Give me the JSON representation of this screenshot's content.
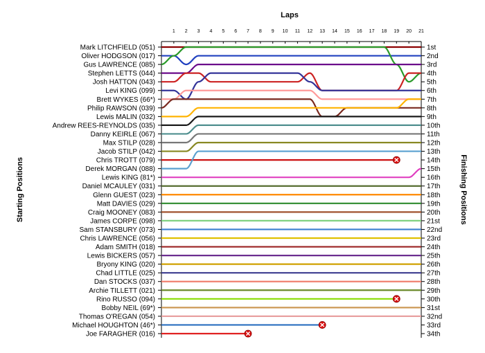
{
  "chart_data": {
    "type": "line",
    "title": "Laps",
    "ylabel_left": "Starting Positions",
    "ylabel_right": "Finishing Positions",
    "laps": [
      0,
      1,
      2,
      3,
      4,
      5,
      6,
      7,
      8,
      9,
      10,
      11,
      12,
      13,
      14,
      15,
      16,
      17,
      18,
      19,
      20,
      21
    ],
    "x_tick_labels": [
      "1",
      "2",
      "3",
      "4",
      "5",
      "6",
      "7",
      "8",
      "9",
      "10",
      "11",
      "12",
      "13",
      "14",
      "15",
      "16",
      "17",
      "18",
      "19",
      "20",
      "21"
    ],
    "starting_labels": [
      "Mark LITCHFIELD (051)",
      "Oliver HODGSON (017)",
      "Gus LAWRENCE (085)",
      "Stephen LETTS (044)",
      "Josh HATTON (043)",
      "Levi KING (099)",
      "Brett WYKES (66*)",
      "Philip RAWSON (039)",
      "Lewis MALIN (032)",
      "Andrew REES-REYNOLDS (035)",
      "Danny KEIRLE (067)",
      "Max STILP (028)",
      "Jacob STILP (042)",
      "Chris TROTT (079)",
      "Derek MORGAN (088)",
      "Lewis KING (81*)",
      "Daniel MCAULEY (031)",
      "Glenn GUEST (023)",
      "Matt DAVIES (029)",
      "Craig MOONEY (083)",
      "James CORPE (098)",
      "Sam STANSBURY (073)",
      "Chris LAWRENCE (056)",
      "Adam SMITH (018)",
      "Lewis BICKERS (057)",
      "Bryony KING (020)",
      "Chad LITTLE (025)",
      "Dan STOCKS (037)",
      "Archie TILLETT (021)",
      "Rino RUSSO (094)",
      "Bobby NEIL (69*)",
      "Thomas O'REGAN (054)",
      "Michael HOUGHTON (46*)",
      "Joe FARAGHER (016)"
    ],
    "finishing_labels": [
      "1st",
      "2nd",
      "3rd",
      "4th",
      "5th",
      "6th",
      "7th",
      "8th",
      "9th",
      "10th",
      "11th",
      "12th",
      "13th",
      "14th",
      "15th",
      "16th",
      "17th",
      "18th",
      "19th",
      "20th",
      "21st",
      "22nd",
      "23rd",
      "24th",
      "25th",
      "26th",
      "27th",
      "28th",
      "29th",
      "30th",
      "31st",
      "32nd",
      "33rd",
      "34th"
    ],
    "series": [
      {
        "color": "#8b0000",
        "positions": [
          1,
          1,
          1,
          1,
          1,
          1,
          1,
          1,
          1,
          1,
          1,
          1,
          1,
          1,
          1,
          1,
          1,
          1,
          1,
          1,
          1,
          1
        ]
      },
      {
        "color": "#1f3fbf",
        "positions": [
          2,
          2,
          3,
          2,
          2,
          2,
          2,
          2,
          2,
          2,
          2,
          2,
          2,
          2,
          2,
          2,
          2,
          2,
          2,
          2,
          2,
          2
        ]
      },
      {
        "color": "#2a9a2a",
        "positions": [
          3,
          2,
          1,
          1,
          1,
          1,
          1,
          1,
          1,
          1,
          1,
          1,
          1,
          1,
          1,
          1,
          1,
          1,
          1,
          3,
          5,
          4
        ]
      },
      {
        "color": "#6a0a8a",
        "positions": [
          4,
          4,
          4,
          3,
          3,
          3,
          3,
          3,
          3,
          3,
          3,
          3,
          3,
          3,
          3,
          3,
          3,
          3,
          3,
          3,
          3,
          3
        ]
      },
      {
        "color": "#cc2222",
        "positions": [
          5,
          5,
          4,
          4,
          5,
          5,
          5,
          5,
          5,
          5,
          5,
          5,
          4,
          6,
          6,
          6,
          6,
          6,
          6,
          6,
          4,
          4
        ]
      },
      {
        "color": "#333399",
        "positions": [
          6,
          6,
          7,
          5,
          4,
          4,
          4,
          4,
          4,
          4,
          4,
          4,
          5,
          6,
          6,
          6,
          6,
          6,
          6,
          6,
          6,
          6
        ]
      },
      {
        "color": "#ff9999",
        "positions": [
          7,
          7,
          6,
          6,
          6,
          6,
          6,
          6,
          6,
          6,
          6,
          6,
          6,
          7,
          7,
          7,
          7,
          7,
          7,
          7,
          7,
          7
        ]
      },
      {
        "color": "#7a2a20",
        "positions": [
          8,
          7,
          7,
          7,
          7,
          7,
          7,
          7,
          7,
          7,
          7,
          7,
          7,
          9,
          9,
          8,
          8,
          8,
          8,
          8,
          8,
          8
        ]
      },
      {
        "color": "#ffb300",
        "positions": [
          9,
          9,
          9,
          8,
          8,
          8,
          8,
          8,
          8,
          8,
          8,
          8,
          8,
          8,
          8,
          8,
          8,
          8,
          8,
          8,
          7,
          7
        ]
      },
      {
        "color": "#1a1a1a",
        "positions": [
          10,
          10,
          10,
          9,
          9,
          9,
          9,
          9,
          9,
          9,
          9,
          9,
          9,
          9,
          9,
          9,
          9,
          9,
          9,
          9,
          9,
          9
        ]
      },
      {
        "color": "#4f8f8f",
        "positions": [
          11,
          11,
          11,
          10,
          10,
          10,
          10,
          10,
          10,
          10,
          10,
          10,
          10,
          10,
          10,
          10,
          10,
          10,
          10,
          10,
          10,
          10
        ]
      },
      {
        "color": "#777777",
        "positions": [
          12,
          12,
          12,
          11,
          11,
          11,
          11,
          11,
          11,
          11,
          11,
          11,
          11,
          11,
          11,
          11,
          11,
          11,
          11,
          11,
          11,
          11
        ]
      },
      {
        "color": "#888822",
        "positions": [
          13,
          13,
          13,
          12,
          12,
          12,
          12,
          12,
          12,
          12,
          12,
          12,
          12,
          12,
          12,
          12,
          12,
          12,
          12,
          12,
          12,
          12
        ]
      },
      {
        "color": "#cc1111",
        "positions": [
          14,
          14,
          14,
          14,
          14,
          14,
          14,
          14,
          14,
          14,
          14,
          14,
          14,
          14,
          14,
          14,
          14,
          14,
          14,
          14,
          null,
          null
        ],
        "retired_lap": 19,
        "retired_pos": 14
      },
      {
        "color": "#5aa0d0",
        "positions": [
          15,
          15,
          15,
          13,
          13,
          13,
          13,
          13,
          13,
          13,
          13,
          13,
          13,
          13,
          13,
          13,
          13,
          13,
          13,
          13,
          13,
          13
        ]
      },
      {
        "color": "#e040c0",
        "positions": [
          16,
          16,
          16,
          16,
          16,
          16,
          16,
          16,
          16,
          16,
          16,
          16,
          16,
          16,
          16,
          16,
          16,
          16,
          16,
          16,
          16,
          15
        ]
      },
      {
        "color": "#556b2f",
        "positions": [
          17,
          17,
          17,
          17,
          17,
          17,
          17,
          17,
          17,
          17,
          17,
          17,
          17,
          17,
          17,
          17,
          17,
          17,
          17,
          17,
          17,
          17
        ]
      },
      {
        "color": "#ff8800",
        "positions": [
          18,
          18,
          18,
          18,
          18,
          18,
          18,
          18,
          18,
          18,
          18,
          18,
          18,
          18,
          18,
          18,
          18,
          18,
          18,
          18,
          18,
          18
        ]
      },
      {
        "color": "#2e8b2e",
        "positions": [
          19,
          19,
          19,
          19,
          19,
          19,
          19,
          19,
          19,
          19,
          19,
          19,
          19,
          19,
          19,
          19,
          19,
          19,
          19,
          19,
          19,
          19
        ]
      },
      {
        "color": "#a0522d",
        "positions": [
          20,
          20,
          20,
          20,
          20,
          20,
          20,
          20,
          20,
          20,
          20,
          20,
          20,
          20,
          20,
          20,
          20,
          20,
          20,
          20,
          20,
          20
        ]
      },
      {
        "color": "#7fd17f",
        "positions": [
          21,
          21,
          21,
          21,
          21,
          21,
          21,
          21,
          21,
          21,
          21,
          21,
          21,
          21,
          21,
          21,
          21,
          21,
          21,
          21,
          21,
          21
        ]
      },
      {
        "color": "#3a7fd0",
        "positions": [
          22,
          22,
          22,
          22,
          22,
          22,
          22,
          22,
          22,
          22,
          22,
          22,
          22,
          22,
          22,
          22,
          22,
          22,
          22,
          22,
          22,
          22
        ]
      },
      {
        "color": "#e0c000",
        "positions": [
          23,
          23,
          23,
          23,
          23,
          23,
          23,
          23,
          23,
          23,
          23,
          23,
          23,
          23,
          23,
          23,
          23,
          23,
          23,
          23,
          23,
          23
        ]
      },
      {
        "color": "#9b2222",
        "positions": [
          24,
          24,
          24,
          24,
          24,
          24,
          24,
          24,
          24,
          24,
          24,
          24,
          24,
          24,
          24,
          24,
          24,
          24,
          24,
          24,
          24,
          24
        ]
      },
      {
        "color": "#6b2d8f",
        "positions": [
          25,
          25,
          25,
          25,
          25,
          25,
          25,
          25,
          25,
          25,
          25,
          25,
          25,
          25,
          25,
          25,
          25,
          25,
          25,
          25,
          25,
          25
        ]
      },
      {
        "color": "#cfa000",
        "positions": [
          26,
          26,
          26,
          26,
          26,
          26,
          26,
          26,
          26,
          26,
          26,
          26,
          26,
          26,
          26,
          26,
          26,
          26,
          26,
          26,
          26,
          26
        ]
      },
      {
        "color": "#3b3b8f",
        "positions": [
          27,
          27,
          27,
          27,
          27,
          27,
          27,
          27,
          27,
          27,
          27,
          27,
          27,
          27,
          27,
          27,
          27,
          27,
          27,
          27,
          27,
          27
        ]
      },
      {
        "color": "#f08070",
        "positions": [
          28,
          28,
          28,
          28,
          28,
          28,
          28,
          28,
          28,
          28,
          28,
          28,
          28,
          28,
          28,
          28,
          28,
          28,
          28,
          28,
          28,
          28
        ]
      },
      {
        "color": "#6a8a2a",
        "positions": [
          29,
          29,
          29,
          29,
          29,
          29,
          29,
          29,
          29,
          29,
          29,
          29,
          29,
          29,
          29,
          29,
          29,
          29,
          29,
          29,
          29,
          29
        ]
      },
      {
        "color": "#88dd00",
        "positions": [
          30,
          30,
          30,
          30,
          30,
          30,
          30,
          30,
          30,
          30,
          30,
          30,
          30,
          30,
          30,
          30,
          30,
          30,
          30,
          30,
          null,
          null
        ],
        "retired_lap": 19,
        "retired_pos": 30
      },
      {
        "color": "#cc9955",
        "positions": [
          31,
          31,
          31,
          31,
          31,
          31,
          31,
          31,
          31,
          31,
          31,
          31,
          31,
          31,
          31,
          31,
          31,
          31,
          31,
          31,
          31,
          31
        ]
      },
      {
        "color": "#e8a0a0",
        "positions": [
          32,
          32,
          32,
          32,
          32,
          32,
          32,
          32,
          32,
          32,
          32,
          32,
          32,
          32,
          32,
          32,
          32,
          32,
          32,
          32,
          32,
          32
        ]
      },
      {
        "color": "#2a6fbf",
        "positions": [
          33,
          33,
          33,
          33,
          33,
          33,
          33,
          33,
          33,
          33,
          33,
          33,
          33,
          33,
          null,
          null,
          null,
          null,
          null,
          null,
          null,
          null
        ],
        "retired_lap": 13,
        "retired_pos": 33
      },
      {
        "color": "#e02020",
        "positions": [
          34,
          34,
          34,
          34,
          34,
          34,
          34,
          34,
          null,
          null,
          null,
          null,
          null,
          null,
          null,
          null,
          null,
          null,
          null,
          null,
          null,
          null
        ],
        "retired_lap": 7,
        "retired_pos": 34
      }
    ]
  }
}
